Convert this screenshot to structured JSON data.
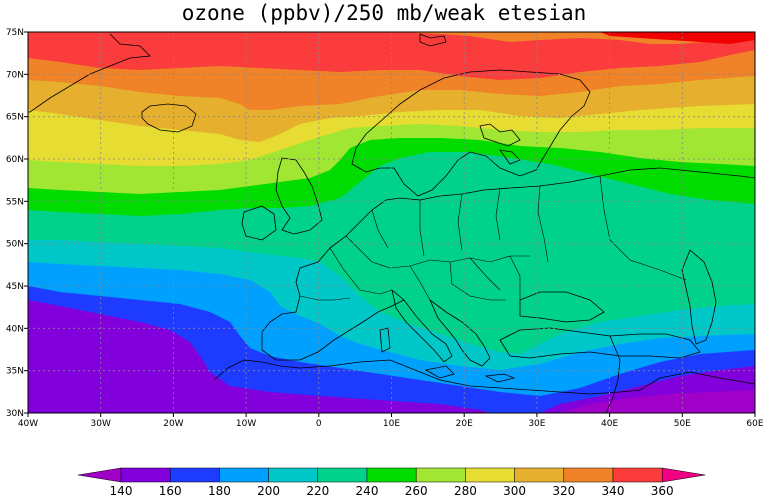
{
  "title": "ozone (ppbv)/250 mb/weak etesian",
  "map": {
    "projection": "lat-lon",
    "lon_range": [
      -40,
      60
    ],
    "lat_range": [
      30,
      75
    ],
    "lon_ticks": [
      {
        "value": -40,
        "label": "40W"
      },
      {
        "value": -30,
        "label": "30W"
      },
      {
        "value": -20,
        "label": "20W"
      },
      {
        "value": -10,
        "label": "10W"
      },
      {
        "value": 0,
        "label": "0"
      },
      {
        "value": 10,
        "label": "10E"
      },
      {
        "value": 20,
        "label": "20E"
      },
      {
        "value": 30,
        "label": "30E"
      },
      {
        "value": 40,
        "label": "40E"
      },
      {
        "value": 50,
        "label": "50E"
      },
      {
        "value": 60,
        "label": "60E"
      }
    ],
    "lat_ticks": [
      {
        "value": 30,
        "label": "30N"
      },
      {
        "value": 35,
        "label": "35N"
      },
      {
        "value": 40,
        "label": "40N"
      },
      {
        "value": 45,
        "label": "45N"
      },
      {
        "value": 50,
        "label": "50N"
      },
      {
        "value": 55,
        "label": "55N"
      },
      {
        "value": 60,
        "label": "60N"
      },
      {
        "value": 65,
        "label": "65N"
      },
      {
        "value": 70,
        "label": "70N"
      },
      {
        "value": 75,
        "label": "75N"
      }
    ],
    "grid": "dotted",
    "coastlines": true,
    "country_borders": true
  },
  "colorbar": {
    "labels": [
      "140",
      "160",
      "180",
      "200",
      "220",
      "240",
      "260",
      "280",
      "300",
      "320",
      "340",
      "360"
    ],
    "colors": [
      "#a000c8",
      "#8200dc",
      "#1e3cff",
      "#00a0ff",
      "#00c8c8",
      "#00d28c",
      "#00dc00",
      "#a0e632",
      "#e6dc32",
      "#e6af2d",
      "#f08228",
      "#fa3c3c",
      "#f00082"
    ]
  }
}
